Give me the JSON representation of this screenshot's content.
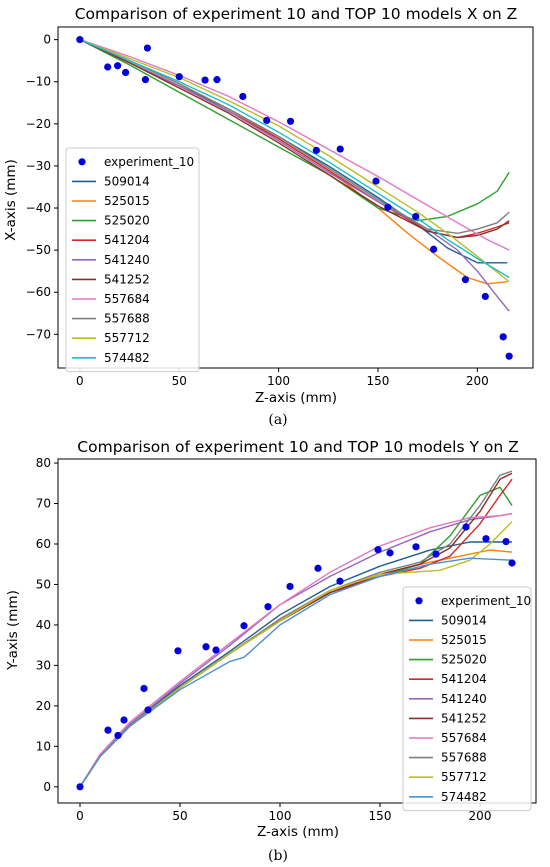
{
  "chart_data": [
    {
      "type": "line",
      "title": "Comparison of experiment 10 and TOP 10 models X on Z",
      "xlabel": "Z-axis (mm)",
      "ylabel": "X-axis (mm)",
      "caption": "(a)",
      "xlim": [
        -11,
        228
      ],
      "ylim": [
        -78,
        3
      ],
      "xticks": [
        "0",
        "50",
        "100",
        "150",
        "200"
      ],
      "xtick_values": [
        0,
        50,
        100,
        150,
        200
      ],
      "yticks": [
        "0",
        "−10",
        "−20",
        "−30",
        "−40",
        "−50",
        "−60",
        "−70"
      ],
      "ytick_values": [
        0,
        -10,
        -20,
        -30,
        -40,
        -50,
        -60,
        -70
      ],
      "legend_position": "lower-left",
      "scatter": {
        "name": "experiment_10",
        "color": "#0000dd",
        "x": [
          0,
          14,
          19,
          23,
          33,
          34,
          50,
          63,
          69,
          82,
          94,
          106,
          119,
          131,
          149,
          155,
          169,
          178,
          194,
          204,
          213,
          216
        ],
        "y": [
          0,
          -6.5,
          -6.2,
          -7.8,
          -9.5,
          -2,
          -8.8,
          -9.6,
          -9.5,
          -13.5,
          -19.2,
          -19.4,
          -26.3,
          -26,
          -33.6,
          -39.8,
          -42,
          -49.8,
          -57,
          -61,
          -70.6,
          -75.2
        ]
      },
      "series": [
        {
          "name": "509014",
          "color": "#1f5f8f",
          "x": [
            0,
            25,
            50,
            75,
            100,
            125,
            150,
            170,
            185,
            200,
            215
          ],
          "y": [
            0,
            -5.5,
            -11,
            -16.5,
            -23,
            -30,
            -37.5,
            -44,
            -49.5,
            -53,
            -53
          ]
        },
        {
          "name": "525015",
          "color": "#ff7f0e",
          "x": [
            0,
            25,
            50,
            75,
            100,
            125,
            150,
            165,
            180,
            195,
            205,
            215
          ],
          "y": [
            0,
            -5,
            -10.5,
            -16.5,
            -23.5,
            -31,
            -40,
            -46,
            -51.5,
            -56.5,
            -58,
            -57.5
          ]
        },
        {
          "name": "525020",
          "color": "#2ca02c",
          "x": [
            0,
            25,
            50,
            75,
            100,
            125,
            150,
            170,
            185,
            200,
            210,
            216
          ],
          "y": [
            0,
            -6,
            -12.5,
            -19,
            -25.5,
            -32,
            -40,
            -43,
            -42,
            -39,
            -36,
            -31.5
          ]
        },
        {
          "name": "541204",
          "color": "#d62728",
          "x": [
            0,
            25,
            50,
            75,
            100,
            125,
            150,
            175,
            190,
            200,
            210,
            216
          ],
          "y": [
            0,
            -5.5,
            -11,
            -17,
            -23.5,
            -31,
            -38.5,
            -45.5,
            -47,
            -46,
            -44.5,
            -43.5
          ]
        },
        {
          "name": "541240",
          "color": "#9467bd",
          "x": [
            0,
            25,
            50,
            75,
            100,
            125,
            150,
            175,
            190,
            200,
            210,
            216
          ],
          "y": [
            0,
            -5.5,
            -11,
            -17,
            -24,
            -31.5,
            -38.5,
            -45,
            -50,
            -55,
            -61,
            -64.5
          ]
        },
        {
          "name": "541252",
          "color": "#8c2d2a",
          "x": [
            0,
            25,
            50,
            75,
            100,
            125,
            150,
            175,
            190,
            200,
            210,
            216
          ],
          "y": [
            0,
            -5.5,
            -11.5,
            -17.5,
            -24.5,
            -32,
            -39.5,
            -45.5,
            -47,
            -46.5,
            -45,
            -43
          ]
        },
        {
          "name": "557684",
          "color": "#e377c2",
          "x": [
            0,
            25,
            50,
            75,
            100,
            125,
            150,
            170,
            190,
            205,
            216
          ],
          "y": [
            0,
            -4,
            -8.5,
            -13.5,
            -19.5,
            -26,
            -32.5,
            -38,
            -43.5,
            -47.5,
            -50
          ]
        },
        {
          "name": "557688",
          "color": "#7f7f7f",
          "x": [
            0,
            25,
            50,
            75,
            100,
            125,
            150,
            175,
            190,
            200,
            210,
            216
          ],
          "y": [
            0,
            -5,
            -10.5,
            -16.5,
            -23,
            -30.5,
            -38,
            -45,
            -46,
            -45,
            -43.5,
            -41
          ]
        },
        {
          "name": "557712",
          "color": "#bcbd22",
          "x": [
            0,
            25,
            50,
            75,
            100,
            125,
            150,
            170,
            185,
            200,
            216
          ],
          "y": [
            0,
            -4.5,
            -9,
            -14.5,
            -20.5,
            -27.5,
            -35,
            -41,
            -46,
            -51.5,
            -57.5
          ]
        },
        {
          "name": "574482",
          "color": "#17becf",
          "x": [
            0,
            25,
            50,
            75,
            100,
            125,
            150,
            170,
            185,
            200,
            216
          ],
          "y": [
            0,
            -5,
            -10,
            -15.5,
            -22,
            -29,
            -36.5,
            -42.5,
            -47.5,
            -52,
            -56.5
          ]
        }
      ]
    },
    {
      "type": "line",
      "title": "Comparison of experiment 10 and TOP 10 models Y on Z",
      "xlabel": "Z-axis (mm)",
      "ylabel": "Y-axis (mm)",
      "caption": "(b)",
      "xlim": [
        -11,
        228
      ],
      "ylim": [
        -4,
        81
      ],
      "xticks": [
        "0",
        "50",
        "100",
        "150",
        "200"
      ],
      "xtick_values": [
        0,
        50,
        100,
        150,
        200
      ],
      "yticks": [
        "0",
        "10",
        "20",
        "30",
        "40",
        "50",
        "60",
        "70",
        "80"
      ],
      "ytick_values": [
        0,
        10,
        20,
        30,
        40,
        50,
        60,
        70,
        80
      ],
      "legend_position": "lower-right",
      "scatter": {
        "name": "experiment_10",
        "color": "#0000dd",
        "x": [
          0,
          14,
          19,
          22,
          32,
          34,
          49,
          63,
          68,
          82,
          94,
          105,
          119,
          130,
          149,
          155,
          168,
          178,
          193,
          203,
          213,
          216
        ],
        "y": [
          0,
          14,
          12.7,
          16.5,
          24.3,
          19,
          33.6,
          34.6,
          33.8,
          39.8,
          44.5,
          49.5,
          54,
          50.8,
          58.6,
          57.8,
          59.3,
          57.5,
          64.2,
          61.3,
          60.6,
          55.3
        ]
      },
      "series": [
        {
          "name": "509014",
          "color": "#1f5f8f",
          "x": [
            0,
            10,
            25,
            50,
            75,
            100,
            125,
            150,
            175,
            195,
            210,
            216
          ],
          "y": [
            0,
            7.5,
            15.5,
            25,
            33.5,
            42.5,
            49.5,
            54.5,
            58.5,
            60.5,
            60.5,
            60.5
          ]
        },
        {
          "name": "525015",
          "color": "#ff7f0e",
          "x": [
            0,
            10,
            25,
            50,
            75,
            100,
            125,
            150,
            175,
            195,
            205,
            216
          ],
          "y": [
            0,
            7.5,
            15,
            24.5,
            33,
            41.5,
            48.5,
            52.5,
            55.5,
            57.5,
            58.5,
            58
          ]
        },
        {
          "name": "525020",
          "color": "#2ca02c",
          "x": [
            0,
            10,
            25,
            50,
            75,
            100,
            125,
            150,
            170,
            185,
            200,
            210,
            216
          ],
          "y": [
            0,
            7.5,
            15,
            24.5,
            33,
            41,
            48,
            52,
            55,
            62,
            72,
            74,
            69.5
          ]
        },
        {
          "name": "541204",
          "color": "#d62728",
          "x": [
            0,
            10,
            25,
            50,
            75,
            100,
            125,
            150,
            170,
            185,
            200,
            210,
            216
          ],
          "y": [
            0,
            7.5,
            15,
            24.5,
            33,
            41,
            48,
            52,
            54,
            57,
            65,
            72,
            76
          ]
        },
        {
          "name": "541240",
          "color": "#9467bd",
          "x": [
            0,
            10,
            25,
            50,
            75,
            100,
            125,
            150,
            175,
            195,
            210,
            216
          ],
          "y": [
            0,
            7.5,
            15.5,
            25.5,
            35,
            45,
            52,
            58,
            63,
            66,
            67,
            67.5
          ]
        },
        {
          "name": "541252",
          "color": "#8c2d2a",
          "x": [
            0,
            10,
            25,
            50,
            75,
            100,
            125,
            150,
            170,
            185,
            200,
            210,
            216
          ],
          "y": [
            0,
            7.5,
            15,
            24.5,
            33,
            41,
            48,
            52.5,
            55,
            59,
            68,
            76,
            77.5
          ]
        },
        {
          "name": "557684",
          "color": "#e377c2",
          "x": [
            0,
            10,
            25,
            50,
            75,
            100,
            125,
            150,
            175,
            195,
            210,
            216
          ],
          "y": [
            0,
            8,
            16,
            26,
            35.5,
            45,
            53,
            59.5,
            64,
            66.5,
            67,
            67.5
          ]
        },
        {
          "name": "557688",
          "color": "#7f7f7f",
          "x": [
            0,
            10,
            25,
            50,
            75,
            100,
            125,
            150,
            170,
            185,
            200,
            210,
            216
          ],
          "y": [
            0,
            7.5,
            15,
            24.5,
            33,
            41.5,
            48.5,
            53,
            55.5,
            60,
            69.5,
            77,
            78
          ]
        },
        {
          "name": "557712",
          "color": "#bcbd22",
          "x": [
            0,
            10,
            25,
            50,
            75,
            100,
            125,
            150,
            165,
            180,
            195,
            205,
            216
          ],
          "y": [
            0,
            7.5,
            15,
            24.5,
            33,
            41,
            48.5,
            52.5,
            53,
            53.5,
            56,
            60,
            65.5
          ]
        },
        {
          "name": "574482",
          "color": "#4a90d9",
          "x": [
            0,
            10,
            25,
            50,
            75,
            82,
            100,
            125,
            150,
            175,
            195,
            216
          ],
          "y": [
            0,
            7.5,
            15,
            24,
            31,
            32,
            40,
            47.5,
            52,
            55,
            56.5,
            56
          ]
        }
      ]
    }
  ]
}
